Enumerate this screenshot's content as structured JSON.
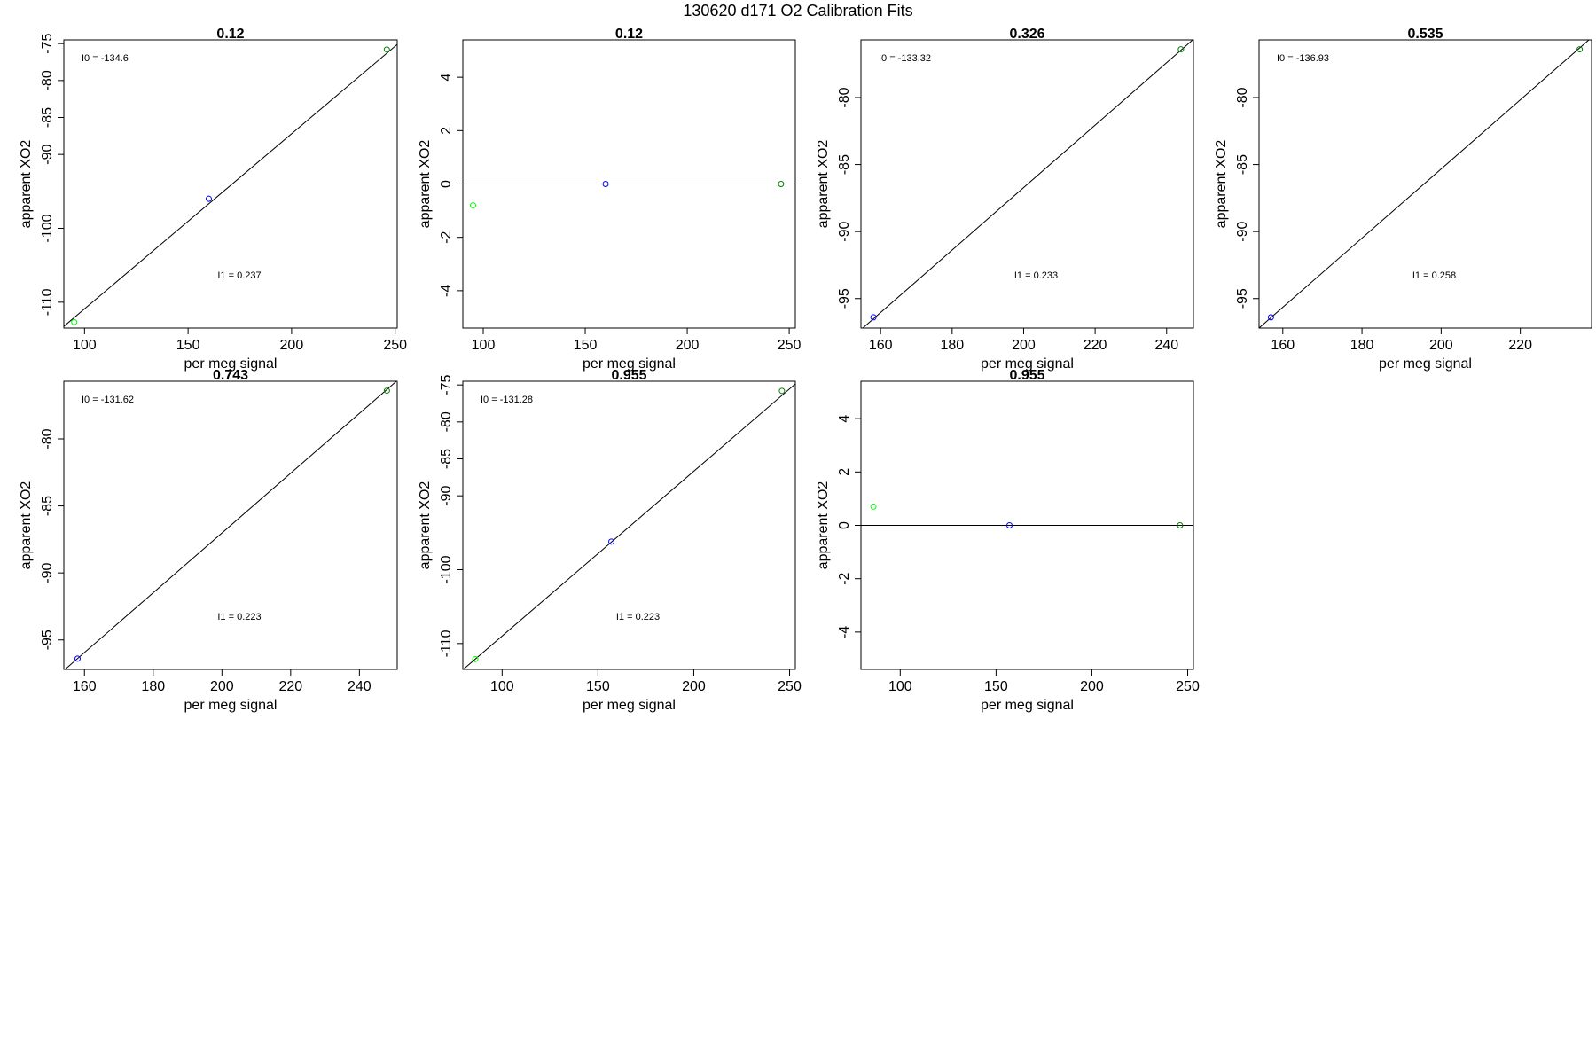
{
  "figure": {
    "title": "130620   d171   O2 Calibration Fits"
  },
  "chart_data": [
    {
      "type": "scatter",
      "title": "0.12",
      "xlabel": "per meg signal",
      "ylabel": "apparent XO2",
      "xlim": [
        90,
        251
      ],
      "ylim": [
        -113.5,
        -74.5
      ],
      "xticks": [
        100,
        150,
        200,
        250
      ],
      "yticks": [
        -75,
        -80,
        -85,
        -90,
        -100,
        -110
      ],
      "points": [
        {
          "x": 95,
          "y": -112.7,
          "color": "#00ff00"
        },
        {
          "x": 160,
          "y": -96.0,
          "color": "#0000ff"
        },
        {
          "x": 246,
          "y": -75.8,
          "color": "#008000"
        }
      ],
      "line": {
        "intercept": -134.6,
        "slope": 0.237
      },
      "annotations": {
        "i0": "I0 =  -134.6",
        "i1": "I1 =  0.237"
      }
    },
    {
      "type": "scatter",
      "title": "0.12",
      "xlabel": "per meg signal",
      "ylabel": "apparent XO2",
      "xlim": [
        90,
        253
      ],
      "ylim": [
        -5.4,
        5.4
      ],
      "xticks": [
        100,
        150,
        200,
        250
      ],
      "yticks": [
        4,
        2,
        0,
        -2,
        -4
      ],
      "points": [
        {
          "x": 95,
          "y": -0.8,
          "color": "#00ff00"
        },
        {
          "x": 160,
          "y": 0.0,
          "color": "#0000ff"
        },
        {
          "x": 246,
          "y": 0.0,
          "color": "#008000"
        }
      ],
      "line": {
        "intercept": 0,
        "slope": 0
      },
      "annotations": {}
    },
    {
      "type": "scatter",
      "title": "0.326",
      "xlabel": "per meg signal",
      "ylabel": "apparent XO2",
      "xlim": [
        154.5,
        247.5
      ],
      "ylim": [
        -97.2,
        -75.7
      ],
      "xticks": [
        160,
        180,
        200,
        220,
        240
      ],
      "yticks": [
        -80,
        -85,
        -90,
        -95
      ],
      "points": [
        {
          "x": 158,
          "y": -96.4,
          "color": "#0000ff"
        },
        {
          "x": 244,
          "y": -76.4,
          "color": "#008000"
        }
      ],
      "line": {
        "intercept": -133.32,
        "slope": 0.233
      },
      "annotations": {
        "i0": "I0 =  -133.32",
        "i1": "I1 =  0.233"
      }
    },
    {
      "type": "scatter",
      "title": "0.535",
      "xlabel": "per meg signal",
      "ylabel": "apparent XO2",
      "xlim": [
        154,
        238
      ],
      "ylim": [
        -97.2,
        -75.7
      ],
      "xticks": [
        160,
        180,
        200,
        220
      ],
      "yticks": [
        -80,
        -85,
        -90,
        -95
      ],
      "points": [
        {
          "x": 157,
          "y": -96.4,
          "color": "#0000ff"
        },
        {
          "x": 235,
          "y": -76.4,
          "color": "#008000"
        }
      ],
      "line": {
        "intercept": -136.93,
        "slope": 0.258
      },
      "annotations": {
        "i0": "I0 =  -136.93",
        "i1": "I1 =  0.258"
      }
    },
    {
      "type": "scatter",
      "title": "0.743",
      "xlabel": "per meg signal",
      "ylabel": "apparent XO2",
      "xlim": [
        154,
        251
      ],
      "ylim": [
        -97.2,
        -75.7
      ],
      "xticks": [
        160,
        180,
        200,
        220,
        240
      ],
      "yticks": [
        -80,
        -85,
        -90,
        -95
      ],
      "points": [
        {
          "x": 158,
          "y": -96.4,
          "color": "#0000ff"
        },
        {
          "x": 248,
          "y": -76.4,
          "color": "#008000"
        }
      ],
      "line": {
        "intercept": -131.62,
        "slope": 0.223
      },
      "annotations": {
        "i0": "I0 =  -131.62",
        "i1": "I1 =  0.223"
      }
    },
    {
      "type": "scatter",
      "title": "0.955",
      "xlabel": "per meg signal",
      "ylabel": "apparent XO2",
      "xlim": [
        79.5,
        253
      ],
      "ylim": [
        -113.5,
        -74.5
      ],
      "xticks": [
        100,
        150,
        200,
        250
      ],
      "yticks": [
        -75,
        -80,
        -85,
        -90,
        -100,
        -110
      ],
      "points": [
        {
          "x": 86,
          "y": -112.1,
          "color": "#00ff00"
        },
        {
          "x": 157,
          "y": -96.2,
          "color": "#0000ff"
        },
        {
          "x": 246,
          "y": -75.8,
          "color": "#008000"
        }
      ],
      "line": {
        "intercept": -131.28,
        "slope": 0.223
      },
      "annotations": {
        "i0": "I0 =  -131.28",
        "i1": "I1 =  0.223"
      }
    },
    {
      "type": "scatter",
      "title": "0.955",
      "xlabel": "per meg signal",
      "ylabel": "apparent XO2",
      "xlim": [
        79.5,
        253
      ],
      "ylim": [
        -5.4,
        5.4
      ],
      "xticks": [
        100,
        150,
        200,
        250
      ],
      "yticks": [
        4,
        2,
        0,
        -2,
        -4
      ],
      "points": [
        {
          "x": 86,
          "y": 0.7,
          "color": "#00ff00"
        },
        {
          "x": 157,
          "y": 0.0,
          "color": "#0000ff"
        },
        {
          "x": 246,
          "y": 0.0,
          "color": "#008000"
        }
      ],
      "line": {
        "intercept": 0,
        "slope": 0
      },
      "annotations": {}
    }
  ]
}
